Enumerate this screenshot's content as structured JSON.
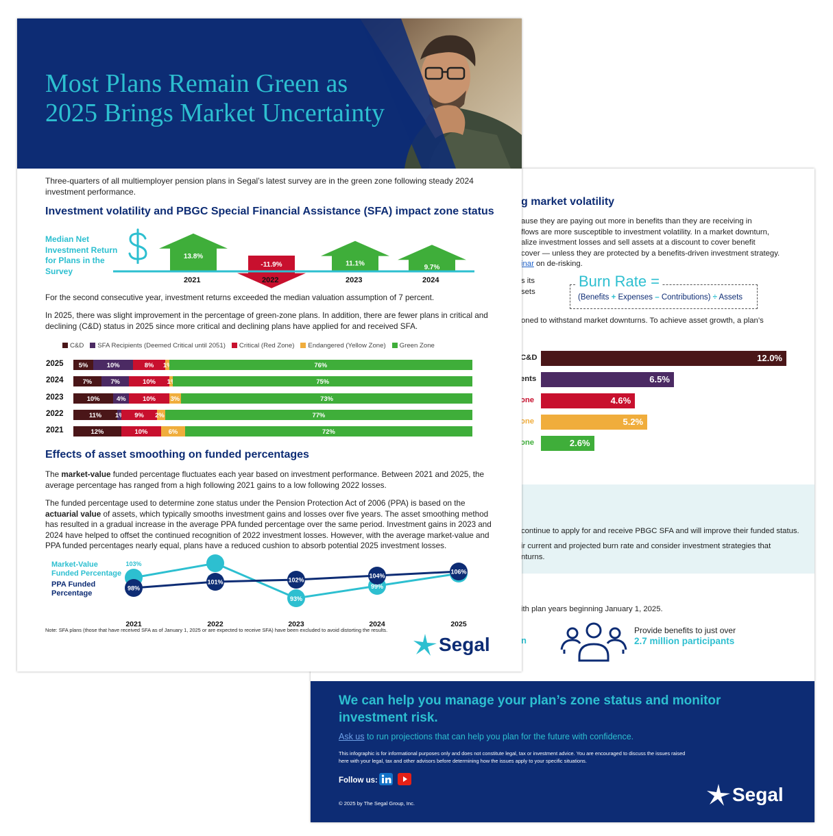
{
  "back_page": {
    "section_title": "g market volatility",
    "paragraph": "ause they are paying out more in benefits than they are receiving in",
    "paragraph_lines": [
      "ause they are paying out more in benefits than they are receiving in",
      "flows are more susceptible to investment volatility. In a market downturn,",
      "alize investment losses and sell assets at a discount to cover benefit",
      "cover — unless they are protected by a benefits-driven investment strategy."
    ],
    "webinar_link": "inar",
    "webinar_rest": " on de-risking.",
    "frag_its": "s its",
    "frag_sets": "sets",
    "burn_title": "Burn Rate =",
    "burn_formula": {
      "benefits": "(Benefits",
      "plus": "+",
      "expenses": "Expenses",
      "minus": "–",
      "contributions": "Contributions)",
      "divide": "÷",
      "assets": "Assets"
    },
    "withstand": "oned to withstand market downturns. To achieve asset growth, a plan’s",
    "burn_bars": [
      {
        "label": "C&D",
        "value": "12.0%",
        "pct": 12.0,
        "color": "#4a1618"
      },
      {
        "label": "ents",
        "value": "6.5%",
        "pct": 6.5,
        "color": "#4b2a63"
      },
      {
        "label": "one",
        "value": "4.6%",
        "pct": 4.6,
        "color": "#c8102e"
      },
      {
        "label": "one",
        "value": "5.2%",
        "pct": 5.2,
        "color": "#f0ad3c"
      },
      {
        "label": "one",
        "value": "2.6%",
        "pct": 2.6,
        "color": "#3fae3a"
      }
    ],
    "takeaway_1": "continue to apply for and receive PBGC SFA and will improve their funded status.",
    "takeaway_2a": "ir current and projected burn rate and consider investment strategies that",
    "takeaway_2b": "nturns.",
    "plan_years": "ith plan years beginning January 1, 2025.",
    "frag_n": "n",
    "participants_line1": "Provide benefits to just over",
    "participants_line2": "2.7 million participants",
    "footer_title": "We can help you manage your plan’s zone status and monitor investment risk.",
    "ask_link": "Ask us",
    "ask_rest": " to run projections that can help you plan for the future with confidence.",
    "disclaimer": "This infographic is for informational purposes only and does not constitute legal, tax or investment advice. You are encouraged to discuss the issues raised here with your legal, tax and other advisors before determining how the issues apply to your specific situations.",
    "follow_us": "Follow us:",
    "copyright": "© 2025 by The Segal Group, Inc.",
    "logo": "Segal"
  },
  "front_page": {
    "title_line1": "Most Plans Remain Green as",
    "title_line2": "2025 Brings Market Uncertainty",
    "intro": "Three-quarters of all multiemployer pension plans in Segal’s latest survey are in the green zone following steady 2024 investment performance.",
    "section1_title": "Investment volatility and PBGC Special Financial Assistance (SFA) impact zone status",
    "median_label": "Median Net Investment Return for Plans in the Survey",
    "returns": [
      {
        "year": "2021",
        "value": "13.8%",
        "dir": "up"
      },
      {
        "year": "2022",
        "value": "-11.9%",
        "dir": "down"
      },
      {
        "year": "2023",
        "value": "11.1%",
        "dir": "up"
      },
      {
        "year": "2024",
        "value": "9.7%",
        "dir": "up"
      }
    ],
    "returns_note": "For the second consecutive year, investment returns exceeded the median valuation assumption of 7 percent.",
    "green_note": "In 2025, there was slight improvement in the percentage of green-zone plans. In addition, there are fewer plans in critical and declining (C&D) status in 2025 since more critical and declining plans have applied for and received SFA.",
    "zone_legend": [
      {
        "label": "C&D",
        "color": "#4a1618"
      },
      {
        "label": "SFA Recipients (Deemed Critical until 2051)",
        "color": "#4b2a63"
      },
      {
        "label": "Critical (Red Zone)",
        "color": "#c8102e"
      },
      {
        "label": "Endangered (Yellow Zone)",
        "color": "#f0ad3c"
      },
      {
        "label": "Green Zone",
        "color": "#3fae3a"
      }
    ],
    "zone_rows": [
      {
        "year": "2025",
        "segments": [
          {
            "label": "5%",
            "pct": 5
          },
          {
            "label": "10%",
            "pct": 10
          },
          {
            "label": "8%",
            "pct": 8
          },
          {
            "label": "1%",
            "pct": 1
          },
          {
            "label": "76%",
            "pct": 76
          }
        ]
      },
      {
        "year": "2024",
        "segments": [
          {
            "label": "7%",
            "pct": 7
          },
          {
            "label": "7%",
            "pct": 7
          },
          {
            "label": "10%",
            "pct": 10
          },
          {
            "label": "1%",
            "pct": 1
          },
          {
            "label": "75%",
            "pct": 75
          }
        ]
      },
      {
        "year": "2023",
        "segments": [
          {
            "label": "10%",
            "pct": 10
          },
          {
            "label": "4%",
            "pct": 4
          },
          {
            "label": "10%",
            "pct": 10
          },
          {
            "label": "3%",
            "pct": 3
          },
          {
            "label": "73%",
            "pct": 73
          }
        ]
      },
      {
        "year": "2022",
        "segments": [
          {
            "label": "11%",
            "pct": 11
          },
          {
            "label": "1%",
            "pct": 1
          },
          {
            "label": "9%",
            "pct": 9
          },
          {
            "label": "2%",
            "pct": 2
          },
          {
            "label": "77%",
            "pct": 77
          }
        ]
      },
      {
        "year": "2021",
        "segments": [
          {
            "label": "12%",
            "pct": 12
          },
          {
            "label": "",
            "pct": 0
          },
          {
            "label": "10%",
            "pct": 10
          },
          {
            "label": "6%",
            "pct": 6
          },
          {
            "label": "72%",
            "pct": 72
          }
        ]
      }
    ],
    "section2_title": "Effects of asset smoothing on funded percentages",
    "mv_para_pre": "The ",
    "mv_para_bold": "market-value",
    "mv_para_post": " funded percentage fluctuates each year based on investment performance. Between 2021 and 2025, the average percentage has ranged from a high following 2021 gains to a low following 2022 losses.",
    "ppa_para_pre": "The funded percentage used to determine zone status under the Pension Protection Act of 2006 (PPA) is based on the ",
    "ppa_para_bold": "actuarial value",
    "ppa_para_post": " of assets, which typically smooths investment gains and losses over five years. The asset smoothing method has resulted in a gradual increase in the average PPA funded percentage over the same period. Investment gains in 2023 and 2024 have helped to offset the continued recognition of 2022 investment losses. However, with the average market-value and PPA funded percentages nearly equal, plans have a reduced cushion to absorb potential 2025 investment losses.",
    "mv_label": "Market-Value Funded Percentage",
    "ppa_label": "PPA Funded Percentage",
    "note": "Note: SFA plans (those that have received SFA as of January 1, 2025 or are expected to receive SFA) have been excluded to avoid distorting the results.",
    "logo": "Segal"
  },
  "chart_data": [
    {
      "type": "bar",
      "title": "Median Net Investment Return for Plans in the Survey",
      "categories": [
        "2021",
        "2022",
        "2023",
        "2024"
      ],
      "values": [
        13.8,
        -11.9,
        11.1,
        9.7
      ]
    },
    {
      "type": "bar",
      "categories": [
        "2025",
        "2024",
        "2023",
        "2022",
        "2021"
      ],
      "series": [
        {
          "name": "C&D",
          "values": [
            5,
            7,
            10,
            11,
            12
          ]
        },
        {
          "name": "SFA Recipients (Deemed Critical until 2051)",
          "values": [
            10,
            7,
            4,
            1,
            0
          ]
        },
        {
          "name": "Critical (Red Zone)",
          "values": [
            8,
            10,
            10,
            9,
            10
          ]
        },
        {
          "name": "Endangered (Yellow Zone)",
          "values": [
            1,
            1,
            3,
            2,
            6
          ]
        },
        {
          "name": "Green Zone",
          "values": [
            76,
            75,
            73,
            77,
            72
          ]
        }
      ],
      "ylim": [
        0,
        100
      ]
    },
    {
      "type": "line",
      "x": [
        "2021",
        "2022",
        "2023",
        "2024",
        "2025"
      ],
      "series": [
        {
          "name": "Market-Value Funded Percentage",
          "values": [
            103,
            110,
            93,
            99,
            105
          ],
          "color": "#2dbfd0"
        },
        {
          "name": "PPA Funded Percentage",
          "values": [
            98,
            101,
            102,
            104,
            106
          ],
          "color": "#0d2c74"
        }
      ],
      "ylim": [
        85,
        115
      ]
    },
    {
      "type": "bar",
      "categories": [
        "C&D",
        "ents",
        "one",
        "one",
        "one"
      ],
      "values": [
        12.0,
        6.5,
        4.6,
        5.2,
        2.6
      ]
    }
  ]
}
